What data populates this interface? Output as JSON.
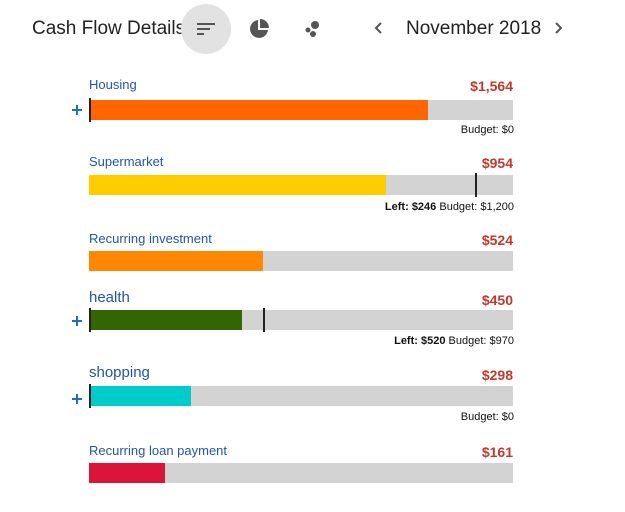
{
  "header": {
    "title": "Cash Flow Details",
    "month": "November 2018",
    "views": [
      {
        "name": "list-view",
        "icon": "sort-lines-icon",
        "active": true
      },
      {
        "name": "pie-view",
        "icon": "pie-chart-icon",
        "active": false
      },
      {
        "name": "bubble-view",
        "icon": "bubble-chart-icon",
        "active": false
      }
    ],
    "prev_icon": "chevron-left-icon",
    "next_icon": "chevron-right-icon"
  },
  "categories": [
    {
      "name": "Housing",
      "amount": "$1,564",
      "fill_fraction": 0.8,
      "color": "#ff6600",
      "has_plus": true,
      "budget_label": "Budget:",
      "budget": "$0",
      "left_label": "",
      "left": ""
    },
    {
      "name": "Supermarket",
      "amount": "$954",
      "fill_fraction": 0.7,
      "color": "#ffcc00",
      "marker_fraction": 0.91,
      "has_plus": false,
      "left_label": "Left:",
      "left": "$246",
      "budget_label": "Budget:",
      "budget": "$1,200"
    },
    {
      "name": "Recurring investment",
      "amount": "$524",
      "fill_fraction": 0.41,
      "color": "#ff8800",
      "has_plus": false,
      "left_label": "",
      "left": "",
      "budget_label": "",
      "budget": ""
    },
    {
      "name": "health",
      "amount": "$450",
      "fill_fraction": 0.36,
      "color": "#336600",
      "marker_fraction": 0.41,
      "has_plus": true,
      "left_label": "Left:",
      "left": "$520",
      "budget_label": "Budget:",
      "budget": "$970"
    },
    {
      "name": "shopping",
      "amount": "$298",
      "fill_fraction": 0.24,
      "color": "#00cccc",
      "has_plus": true,
      "left_label": "",
      "left": "",
      "budget_label": "Budget:",
      "budget": "$0"
    },
    {
      "name": "Recurring loan payment",
      "amount": "$161",
      "fill_fraction": 0.18,
      "color": "#dc143c",
      "has_plus": false,
      "left_label": "",
      "left": "",
      "budget_label": "",
      "budget": ""
    }
  ]
}
